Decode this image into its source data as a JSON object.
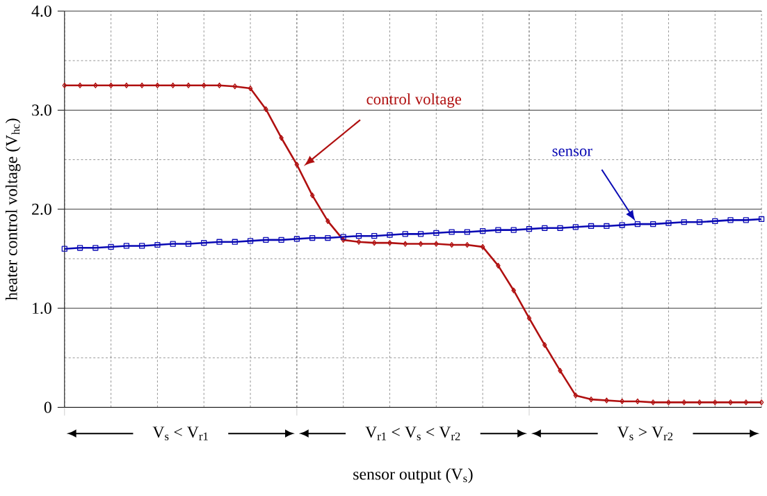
{
  "chart_data": {
    "type": "line",
    "xlabel": "sensor output (V$_{s}$)",
    "ylabel": "heater control voltage (V$_{hc}$)",
    "categories": [
      null,
      null,
      null,
      null,
      null,
      null,
      null,
      null,
      null,
      null,
      null,
      null,
      null,
      null,
      null,
      null,
      null,
      null,
      null,
      null,
      null,
      null,
      null,
      null,
      null,
      null,
      null,
      null,
      null,
      null,
      null,
      null,
      null,
      null,
      null,
      null,
      null,
      null,
      null,
      null,
      null,
      null,
      null,
      null,
      null,
      null
    ],
    "series": [
      {
        "name": "control voltage",
        "color": "#b01010",
        "marker": "diamond",
        "values": [
          3.25,
          3.25,
          3.25,
          3.25,
          3.25,
          3.25,
          3.25,
          3.25,
          3.25,
          3.25,
          3.25,
          3.24,
          3.22,
          3.01,
          2.72,
          2.45,
          2.14,
          1.88,
          1.69,
          1.67,
          1.66,
          1.66,
          1.65,
          1.65,
          1.65,
          1.64,
          1.64,
          1.62,
          1.43,
          1.18,
          0.9,
          0.63,
          0.37,
          0.12,
          0.08,
          0.07,
          0.06,
          0.06,
          0.05,
          0.05,
          0.05,
          0.05,
          0.05,
          0.05,
          0.05,
          0.05
        ]
      },
      {
        "name": "sensor",
        "color": "#0a0ab4",
        "marker": "square",
        "values": [
          1.6,
          1.61,
          1.61,
          1.62,
          1.63,
          1.63,
          1.64,
          1.65,
          1.65,
          1.66,
          1.67,
          1.67,
          1.68,
          1.69,
          1.69,
          1.7,
          1.71,
          1.71,
          1.72,
          1.73,
          1.73,
          1.74,
          1.75,
          1.75,
          1.76,
          1.77,
          1.77,
          1.78,
          1.79,
          1.79,
          1.8,
          1.81,
          1.81,
          1.82,
          1.83,
          1.83,
          1.84,
          1.85,
          1.85,
          1.86,
          1.87,
          1.87,
          1.88,
          1.89,
          1.89,
          1.9
        ]
      }
    ],
    "ylim": [
      0,
      4
    ],
    "yticks": [
      0,
      {
        "value": 1,
        "label": "1.0"
      },
      {
        "value": 2,
        "label": "2.0"
      },
      {
        "value": 3,
        "label": "3.0"
      },
      {
        "value": 4,
        "label": "4.0"
      }
    ],
    "grid": true,
    "annotations": [
      "V$_{s}$ < V$_{r1}$",
      "V$_{r1}$ < V$_{s}$ < V$_{r2}$",
      "V$_{s}$ > V$_{r2}$"
    ]
  }
}
